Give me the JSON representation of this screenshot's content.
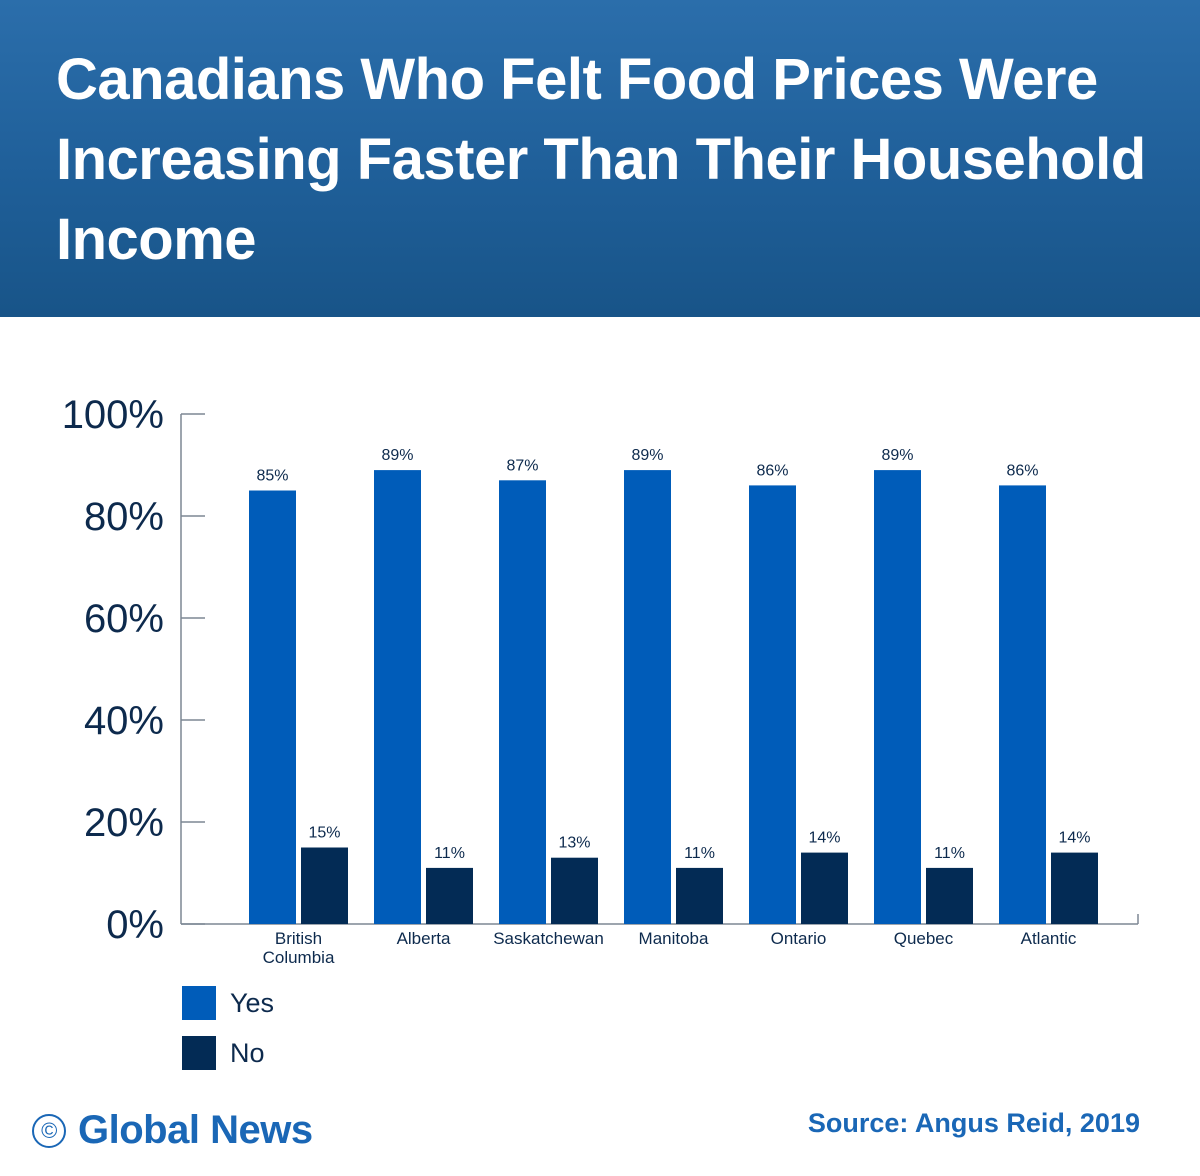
{
  "header": {
    "title": "Canadians Who Felt Food Prices Were Increasing Faster Than Their Household Income"
  },
  "colors": {
    "yes": "#005cb9",
    "no": "#032b55",
    "axis": "#0d2a4d",
    "brand": "#1a67b6"
  },
  "chart_data": {
    "type": "bar",
    "title": "Canadians Who Felt Food Prices Were Increasing Faster Than Their Household Income",
    "xlabel": "",
    "ylabel": "",
    "ylim": [
      0,
      100
    ],
    "yticks": [
      "0%",
      "20%",
      "40%",
      "60%",
      "80%",
      "100%"
    ],
    "categories": [
      [
        "British",
        "Columbia"
      ],
      [
        "Alberta"
      ],
      [
        "Saskatchewan"
      ],
      [
        "Manitoba"
      ],
      [
        "Ontario"
      ],
      [
        "Quebec"
      ],
      [
        "Atlantic"
      ]
    ],
    "series": [
      {
        "name": "Yes",
        "values": [
          85,
          89,
          87,
          89,
          86,
          89,
          86
        ]
      },
      {
        "name": "No",
        "values": [
          15,
          11,
          13,
          11,
          14,
          11,
          14
        ]
      }
    ],
    "data_label_format": "%",
    "grid": false,
    "legend": "bottom-left"
  },
  "legend": {
    "items": [
      {
        "label": "Yes"
      },
      {
        "label": "No"
      }
    ]
  },
  "footer": {
    "copyright_symbol": "©",
    "brand": "Global News",
    "source": "Source: Angus Reid, 2019"
  }
}
